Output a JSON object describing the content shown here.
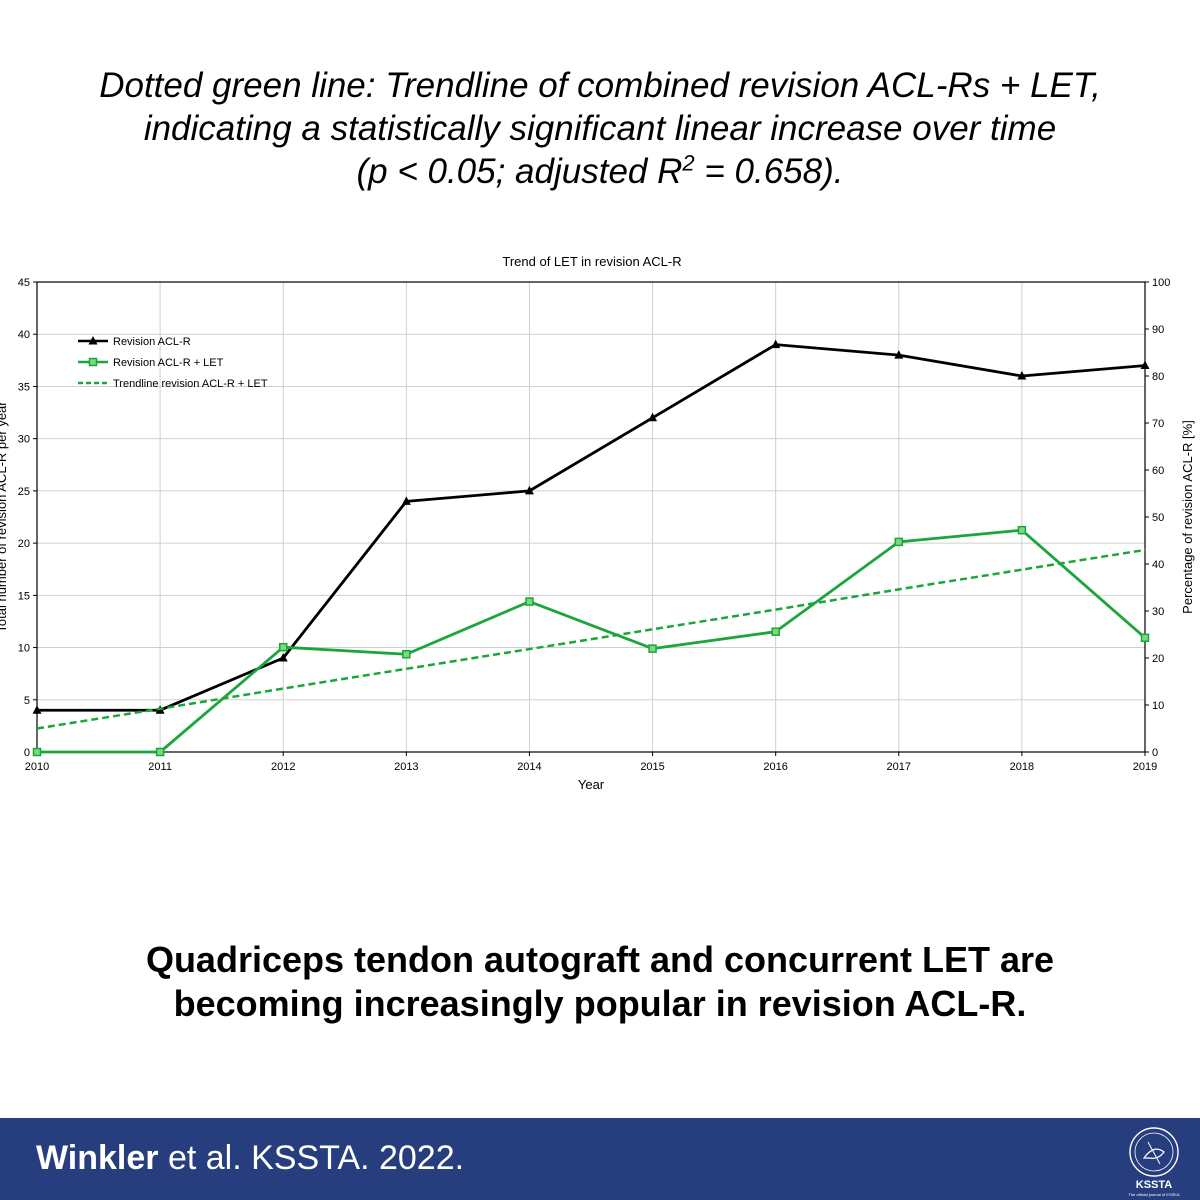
{
  "caption": {
    "line1": "Dotted green line: Trendline of combined revision ACL-Rs + LET,",
    "line2": "indicating a statistically significant linear increase over time",
    "line3_pre": "(p < 0.05; adjusted R",
    "line3_sup": "2",
    "line3_post": " = 0.658)."
  },
  "headline": {
    "line1": "Quadriceps tendon autograft and concurrent LET are",
    "line2": "becoming increasingly popular in revision ACL-R."
  },
  "footer": {
    "author": "Winkler",
    "rest": " et al. KSSTA. 2022.",
    "logo_text": "KSSTA",
    "logo_subtext": "The official journal of ESSKA"
  },
  "colors": {
    "black_series": "#000000",
    "green_series": "#1aa63a",
    "footer_bg": "#263d7e"
  },
  "chart_data": {
    "type": "line",
    "title": "Trend of LET in revision ACL-R",
    "xlabel": "Year",
    "ylabel": "Total number of revision ACL-R per year",
    "ylabel_right": "Percentage of revision ACL-R [%]",
    "x": [
      2010,
      2011,
      2012,
      2013,
      2014,
      2015,
      2016,
      2017,
      2018,
      2019
    ],
    "xlim": [
      2010,
      2019
    ],
    "ylim": [
      0,
      45
    ],
    "ylim_right": [
      0,
      100
    ],
    "yticks": [
      0,
      5,
      10,
      15,
      20,
      25,
      30,
      35,
      40,
      45
    ],
    "yticks_right": [
      0,
      10,
      20,
      30,
      40,
      50,
      60,
      70,
      80,
      90,
      100
    ],
    "grid": true,
    "legend_position": "top-left",
    "series": [
      {
        "name": "Revision ACL-R",
        "axis": "left",
        "marker": "triangle",
        "color": "#000000",
        "values": [
          4,
          4,
          9,
          24,
          25,
          32,
          39,
          38,
          36,
          37
        ]
      },
      {
        "name": "Revision ACL-R + LET",
        "axis": "right",
        "marker": "square",
        "color": "#1aa63a",
        "values": [
          0,
          0,
          22.3,
          20.8,
          32,
          22,
          25.6,
          44.7,
          47.2,
          24.3
        ]
      },
      {
        "name": "Trendline revision ACL-R + LET",
        "axis": "right",
        "style": "dashed",
        "color": "#1aa63a",
        "values": [
          5,
          9.2,
          13.5,
          17.7,
          21.9,
          26.1,
          30.3,
          34.6,
          38.8,
          43
        ]
      }
    ]
  }
}
